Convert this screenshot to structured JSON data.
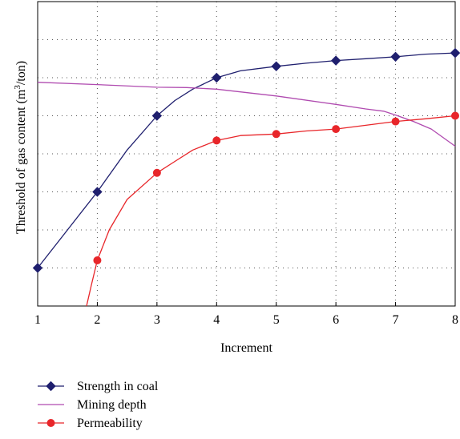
{
  "chart_data": {
    "type": "line",
    "title": "",
    "xlabel": "Increment",
    "ylabel": "Threshold of gas content (m³/ton)",
    "ylabel_parts": {
      "before": "Threshold of gas content (m",
      "sup": "3",
      "after": "/ton)"
    },
    "x_ticks": [
      "1",
      "2",
      "3",
      "4",
      "5",
      "6",
      "7",
      "8"
    ],
    "xlim": [
      1,
      8
    ],
    "ylim": [
      0,
      8
    ],
    "y_ticks_labeled": false,
    "grid": "dotted",
    "legend_position": "below",
    "series": [
      {
        "name": "Strength in coal",
        "color": "#1f1f6e",
        "marker": "diamond",
        "markers": [
          [
            1,
            1.0
          ],
          [
            2,
            3.0
          ],
          [
            3,
            5.0
          ],
          [
            4,
            6.0
          ],
          [
            5,
            6.3
          ],
          [
            6,
            6.45
          ],
          [
            7,
            6.55
          ],
          [
            8,
            6.65
          ]
        ],
        "curve": [
          [
            1,
            1.0
          ],
          [
            1.5,
            2.0
          ],
          [
            2,
            3.0
          ],
          [
            2.5,
            4.1
          ],
          [
            3,
            5.0
          ],
          [
            3.3,
            5.4
          ],
          [
            3.6,
            5.7
          ],
          [
            4,
            6.0
          ],
          [
            4.4,
            6.18
          ],
          [
            5,
            6.3
          ],
          [
            5.5,
            6.38
          ],
          [
            6,
            6.45
          ],
          [
            6.5,
            6.5
          ],
          [
            7,
            6.55
          ],
          [
            7.5,
            6.62
          ],
          [
            8,
            6.65
          ]
        ]
      },
      {
        "name": "Mining depth",
        "color": "#b04bb0",
        "marker": "none",
        "curve": [
          [
            1,
            5.88
          ],
          [
            2,
            5.82
          ],
          [
            3,
            5.75
          ],
          [
            3.5,
            5.74
          ],
          [
            4,
            5.7
          ],
          [
            5,
            5.52
          ],
          [
            6,
            5.3
          ],
          [
            6.5,
            5.18
          ],
          [
            6.8,
            5.12
          ],
          [
            7,
            5.02
          ],
          [
            7.3,
            4.85
          ],
          [
            7.6,
            4.65
          ],
          [
            8,
            4.2
          ]
        ]
      },
      {
        "name": "Permeability",
        "color": "#e8262a",
        "marker": "circle",
        "markers": [
          [
            2,
            1.2
          ],
          [
            3,
            3.5
          ],
          [
            4,
            4.35
          ],
          [
            5,
            4.52
          ],
          [
            6,
            4.65
          ],
          [
            7,
            4.85
          ],
          [
            8,
            5.0
          ]
        ],
        "curve": [
          [
            1.82,
            0.0
          ],
          [
            1.9,
            0.55
          ],
          [
            2,
            1.2
          ],
          [
            2.2,
            2.0
          ],
          [
            2.5,
            2.8
          ],
          [
            3,
            3.5
          ],
          [
            3.3,
            3.8
          ],
          [
            3.6,
            4.1
          ],
          [
            4,
            4.35
          ],
          [
            4.4,
            4.48
          ],
          [
            5,
            4.52
          ],
          [
            5.5,
            4.6
          ],
          [
            6,
            4.65
          ],
          [
            6.5,
            4.75
          ],
          [
            7,
            4.85
          ],
          [
            7.5,
            4.92
          ],
          [
            8,
            5.0
          ]
        ]
      }
    ]
  }
}
